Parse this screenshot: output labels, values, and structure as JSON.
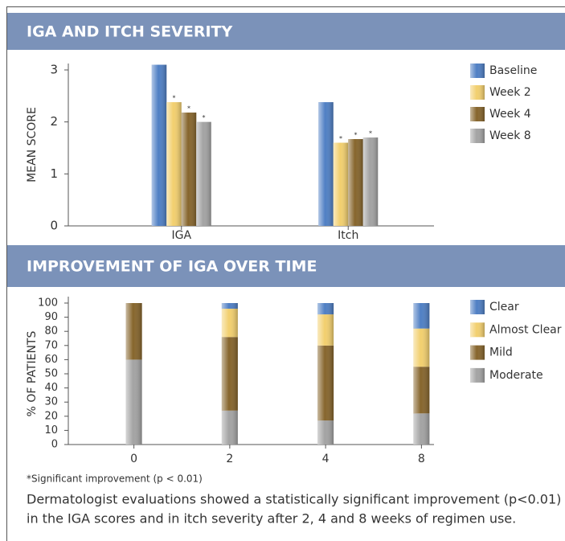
{
  "chart_data": [
    {
      "type": "bar",
      "title": "IGA AND ITCH SEVERITY",
      "y_label": "MEAN SCORE",
      "categories": [
        "IGA",
        "Itch"
      ],
      "series": [
        {
          "name": "Baseline",
          "color": "#4f7fc4",
          "values": [
            3.1,
            2.38
          ]
        },
        {
          "name": "Week 2",
          "color": "#f2cf6e",
          "values": [
            2.38,
            1.6
          ],
          "annotations": [
            "*",
            "*"
          ]
        },
        {
          "name": "Week 4",
          "color": "#86652c",
          "values": [
            2.18,
            1.67
          ],
          "annotations": [
            "*",
            "*"
          ]
        },
        {
          "name": "Week 8",
          "color": "#a3a3a3",
          "values": [
            2.0,
            1.7
          ],
          "annotations": [
            "*",
            "*"
          ]
        }
      ],
      "ylim": [
        0,
        3
      ],
      "yticks": [
        0,
        1,
        2,
        3
      ]
    },
    {
      "type": "stacked_bar",
      "title": "IMPROVEMENT OF IGA OVER TIME",
      "y_label": "% OF PATIENTS",
      "categories": [
        "0",
        "2",
        "4",
        "8"
      ],
      "series": [
        {
          "name": "Clear",
          "color": "#4f7fc4",
          "values": [
            0,
            4,
            8,
            18
          ]
        },
        {
          "name": "Almost Clear",
          "color": "#f2cf6e",
          "values": [
            0,
            20,
            22,
            27
          ]
        },
        {
          "name": "Mild",
          "color": "#86652c",
          "values": [
            40,
            52,
            53,
            33
          ]
        },
        {
          "name": "Moderate",
          "color": "#a3a3a3",
          "values": [
            60,
            24,
            17,
            22
          ]
        }
      ],
      "ylim": [
        0,
        100
      ],
      "yticks": [
        0,
        10,
        20,
        30,
        40,
        50,
        60,
        70,
        80,
        90,
        100
      ]
    }
  ],
  "footnote": "*Significant improvement (p < 0.01)",
  "description": [
    "Dermatologist evaluations showed a statistically significant improvement (p<0.01)",
    "in the IGA scores and in itch severity after 2, 4 and 8 weeks of regimen use."
  ]
}
